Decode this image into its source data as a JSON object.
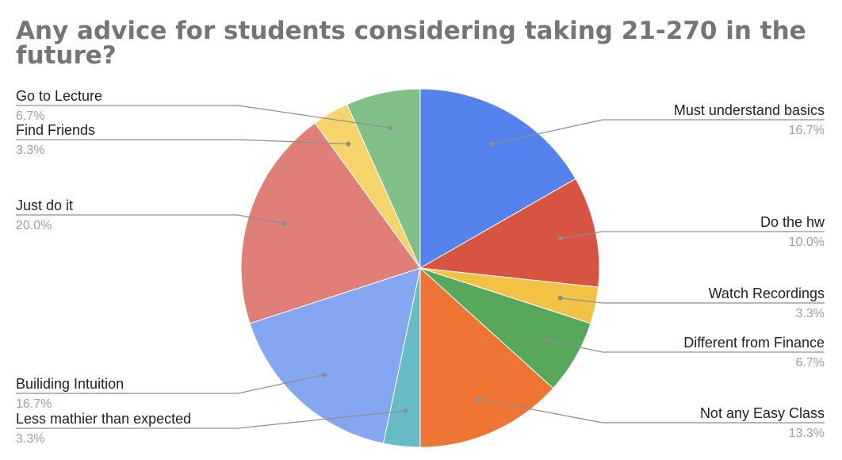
{
  "chart_data": {
    "type": "pie",
    "title": "Any advice for students considering taking 21-270 in the future?",
    "slices": [
      {
        "label": "Must understand basics",
        "value": 16.7,
        "display": "16.7%",
        "color": "#5483ee"
      },
      {
        "label": "Do the hw",
        "value": 10.0,
        "display": "10.0%",
        "color": "#d75342"
      },
      {
        "label": "Watch Recordings",
        "value": 3.3,
        "display": "3.3%",
        "color": "#f1c244"
      },
      {
        "label": "Different from Finance",
        "value": 6.7,
        "display": "6.7%",
        "color": "#57a85b"
      },
      {
        "label": "Not any Easy Class",
        "value": 13.3,
        "display": "13.3%",
        "color": "#ed7433"
      },
      {
        "label": "Less mathier than expected",
        "value": 3.3,
        "display": "3.3%",
        "color": "#67bbc5"
      },
      {
        "label": "Builiding Intuition",
        "value": 16.7,
        "display": "16.7%",
        "color": "#85a6f0"
      },
      {
        "label": "Just do it",
        "value": 20.0,
        "display": "20.0%",
        "color": "#e07f77"
      },
      {
        "label": "Find Friends",
        "value": 3.3,
        "display": "3.3%",
        "color": "#f5d46c"
      },
      {
        "label": "Go to Lecture",
        "value": 6.7,
        "display": "6.7%",
        "color": "#83bf88"
      }
    ],
    "legend": "callout-labels"
  }
}
